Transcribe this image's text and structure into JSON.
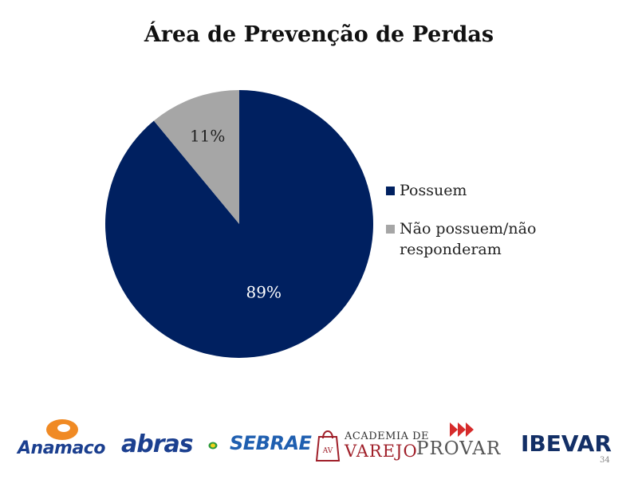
{
  "chart_data": {
    "type": "pie",
    "title": "Área de Prevenção de Perdas",
    "categories": [
      "Possuem",
      "Não possuem/não responderam"
    ],
    "values": [
      89,
      11
    ],
    "data_labels": [
      "89%",
      "11%"
    ],
    "colors": [
      "#002060",
      "#a6a6a6"
    ],
    "start_angle": "12 o'clock",
    "legend_position": "right"
  },
  "logos": {
    "anamaco": "Anamaco",
    "abras": "abras",
    "sebrae": "SEBRAE",
    "academia_top": "Academia de",
    "academia_bottom": "VAREJO",
    "academia_mark": "AV",
    "provar": "PROVAR",
    "ibevar": "IBEVAR"
  },
  "page_number": "34"
}
